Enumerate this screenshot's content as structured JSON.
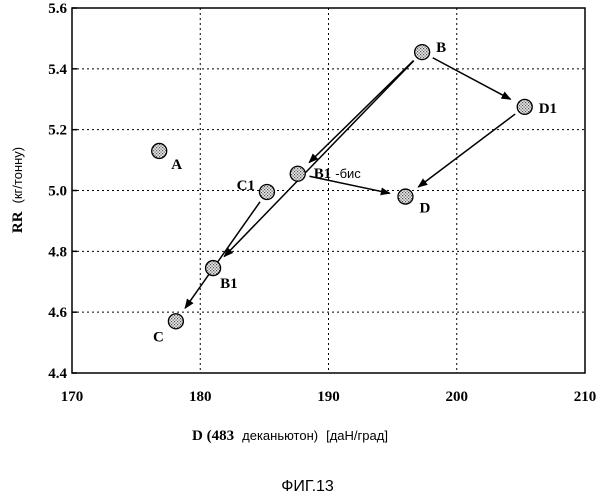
{
  "chart_data": {
    "type": "scatter",
    "xlim": [
      170,
      210
    ],
    "ylim": [
      4.4,
      5.6
    ],
    "x_ticks": [
      "170",
      "180",
      "190",
      "200",
      "210"
    ],
    "y_ticks": [
      "4.4",
      "4.6",
      "4.8",
      "5.0",
      "5.2",
      "5.4",
      "5.6"
    ],
    "grid": true,
    "xlabel": {
      "bold": "D (483",
      "normal": "деканьютон)",
      "unit": "[даН/град]"
    },
    "ylabel": {
      "bold": "RR",
      "normal": "(кг/тонну)"
    },
    "points": [
      {
        "id": "A",
        "label": "A",
        "suffix": "",
        "x": 176.8,
        "y": 5.13
      },
      {
        "id": "B",
        "label": "B",
        "suffix": "",
        "x": 197.3,
        "y": 5.455
      },
      {
        "id": "D1",
        "label": "D1",
        "suffix": "",
        "x": 205.3,
        "y": 5.275
      },
      {
        "id": "C1",
        "label": "C1",
        "suffix": "",
        "x": 185.2,
        "y": 4.995
      },
      {
        "id": "B1bis",
        "label": "B1",
        "suffix": "-бис",
        "x": 187.6,
        "y": 5.055
      },
      {
        "id": "D",
        "label": "D",
        "suffix": "",
        "x": 196.0,
        "y": 4.98
      },
      {
        "id": "B1",
        "label": "B1",
        "suffix": "",
        "x": 181.0,
        "y": 4.745
      },
      {
        "id": "C",
        "label": "C",
        "suffix": "",
        "x": 178.1,
        "y": 4.57
      }
    ],
    "arrows": [
      {
        "from": "B",
        "to": "D1"
      },
      {
        "from": "D1",
        "to": "D"
      },
      {
        "from": "B",
        "to": "B1bis"
      },
      {
        "from": "B",
        "to": "B1"
      },
      {
        "from": "C1",
        "to": "C"
      },
      {
        "from": "B1bis",
        "to": "D"
      }
    ]
  },
  "caption": "ФИГ.13"
}
